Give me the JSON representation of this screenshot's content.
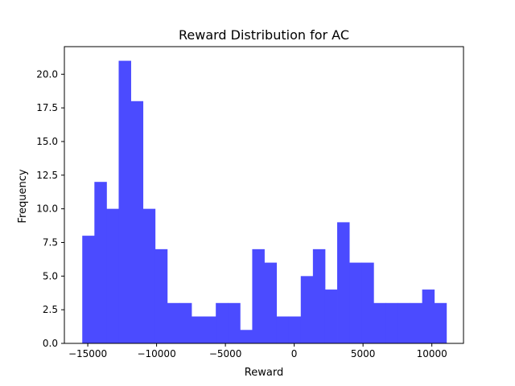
{
  "chart_data": {
    "type": "bar",
    "title": "Reward Distribution for AC",
    "xlabel": "Reward",
    "ylabel": "Frequency",
    "xlim": [
      -16700,
      12300
    ],
    "ylim": [
      0,
      22.05
    ],
    "xticks": [
      -15000,
      -10000,
      -5000,
      0,
      5000,
      10000
    ],
    "xtick_labels": [
      "−15000",
      "−10000",
      "−5000",
      "0",
      "5000",
      "10000"
    ],
    "yticks": [
      0,
      2.5,
      5,
      7.5,
      10,
      12.5,
      15,
      17.5,
      20
    ],
    "ytick_labels": [
      "0.0",
      "2.5",
      "5.0",
      "7.5",
      "10.0",
      "12.5",
      "15.0",
      "17.5",
      "20.0"
    ],
    "bin_start": -15400,
    "bin_width": 882,
    "values": [
      8,
      12,
      10,
      21,
      18,
      10,
      7,
      3,
      3,
      2,
      2,
      3,
      3,
      1,
      7,
      6,
      2,
      2,
      5,
      7,
      4,
      9,
      6,
      6,
      3,
      3,
      3,
      3,
      4,
      3
    ],
    "bar_color": "#4b4bff",
    "grid": false,
    "legend": "none"
  }
}
